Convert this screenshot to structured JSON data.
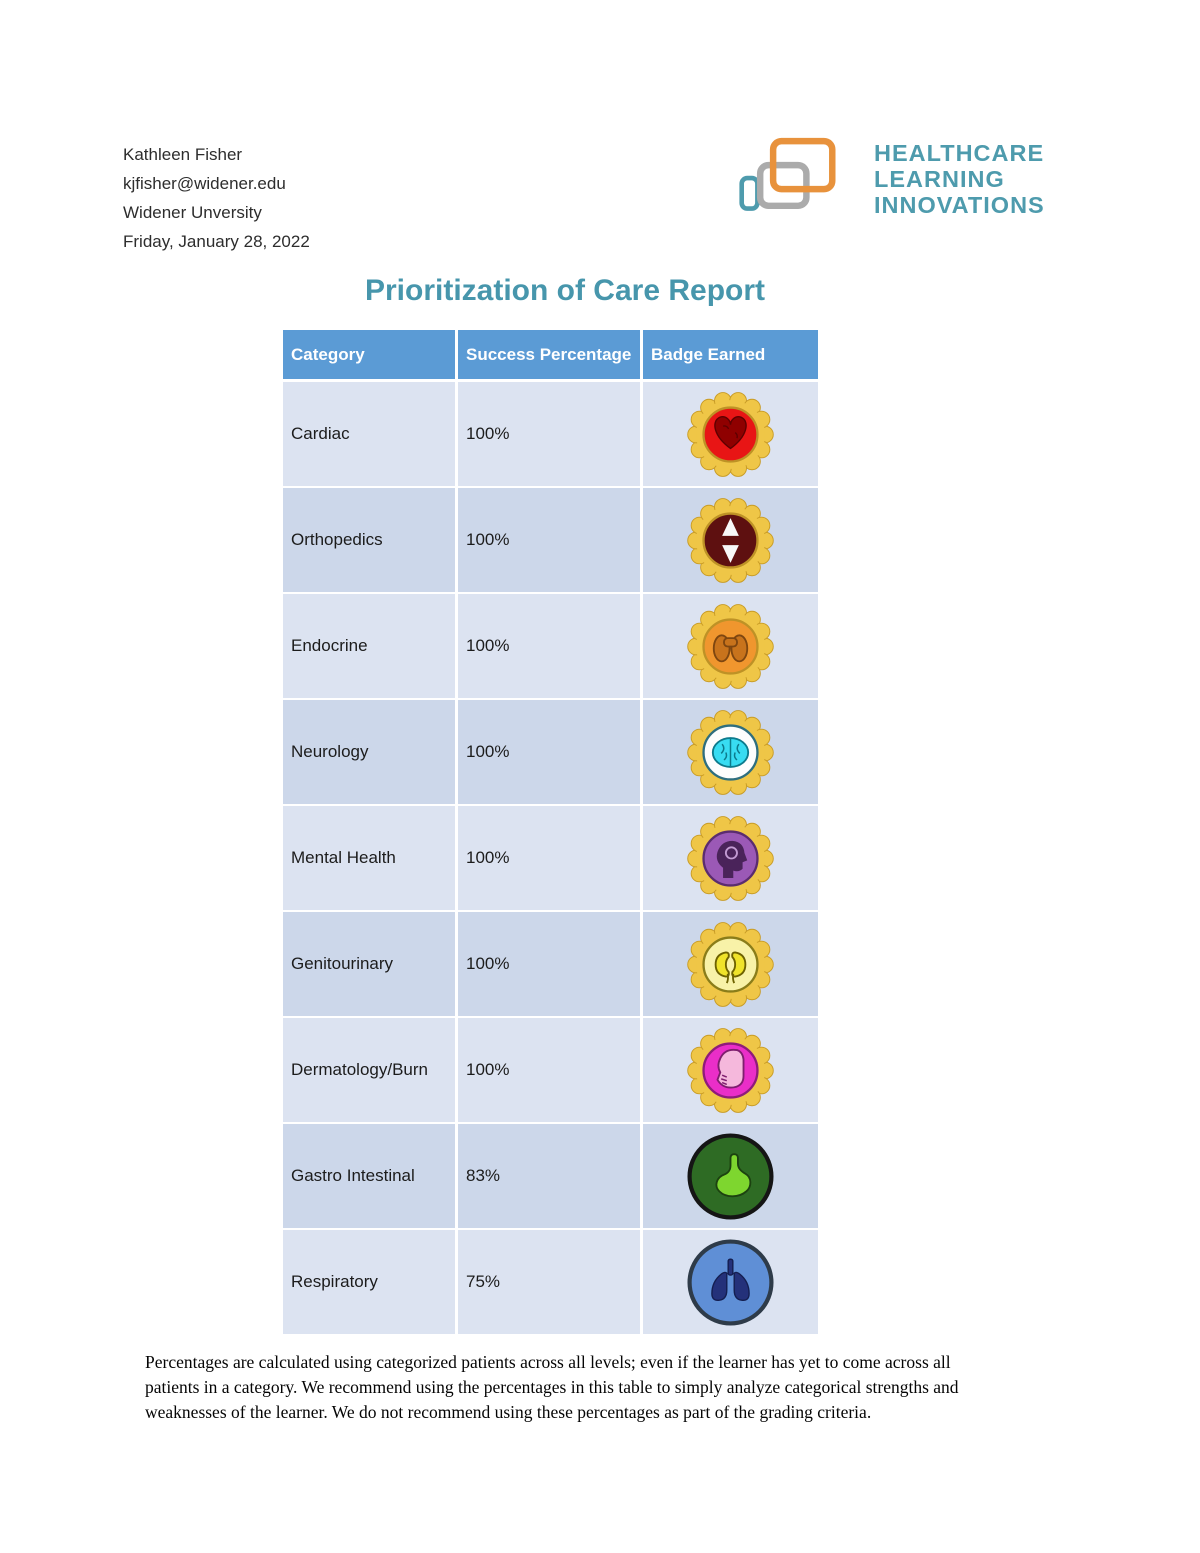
{
  "theme": {
    "teal": "#4E9BAD",
    "title_color": "#4796AC",
    "header_bg": "#5B9BD5",
    "row_odd": "#DCE3F1",
    "row_even": "#CCD7EA",
    "logo_orange": "#E8923C",
    "logo_gray": "#ABABAB",
    "gear_ring": "#EFC647",
    "gear_edge": "#C89B25"
  },
  "user": {
    "name": "Kathleen Fisher",
    "email": "kjfisher@widener.edu",
    "institution": "Widener Unversity",
    "date": "Friday, January 28, 2022"
  },
  "logo": {
    "lines": [
      "HEALTHCARE",
      "LEARNING",
      "INNOVATIONS"
    ]
  },
  "title": "Prioritization of Care Report",
  "table": {
    "headers": [
      "Category",
      "Success Percentage",
      "Badge Earned"
    ],
    "rows": [
      {
        "category": "Cardiac",
        "percentage": "100%",
        "badge": {
          "icon": "heart-icon",
          "style": "gear",
          "bg": "#E81515",
          "bg_edge": "#BE9226",
          "fg": "#8F0000",
          "fg_edge": "#5E0000"
        }
      },
      {
        "category": "Orthopedics",
        "percentage": "100%",
        "badge": {
          "icon": "joint-icon",
          "style": "gear",
          "bg": "#5E1010",
          "bg_edge": "#BE9226",
          "fg": "#F8F8F8",
          "fg_edge": "#D8D8D8"
        }
      },
      {
        "category": "Endocrine",
        "percentage": "100%",
        "badge": {
          "icon": "thyroid-icon",
          "style": "gear",
          "bg": "#F0962E",
          "bg_edge": "#BE9226",
          "fg": "#C8731C",
          "fg_edge": "#7E4610"
        }
      },
      {
        "category": "Neurology",
        "percentage": "100%",
        "badge": {
          "icon": "brain-icon",
          "style": "gear",
          "bg": "#FDFDFD",
          "bg_edge": "#2F6E7E",
          "fg": "#38DCF2",
          "fg_edge": "#0C7A8C"
        }
      },
      {
        "category": "Mental Health",
        "percentage": "100%",
        "badge": {
          "icon": "head-icon",
          "style": "gear",
          "bg": "#9B59B6",
          "bg_edge": "#5B2C6F",
          "fg": "#4A235A",
          "fg_edge": "#3A1A48"
        }
      },
      {
        "category": "Genitourinary",
        "percentage": "100%",
        "badge": {
          "icon": "kidneys-icon",
          "style": "gear",
          "bg": "#F8F2A8",
          "bg_edge": "#8A7D1A",
          "fg": "#F0E32A",
          "fg_edge": "#6E6200"
        }
      },
      {
        "category": "Dermatology/Burn",
        "percentage": "100%",
        "badge": {
          "icon": "face-icon",
          "style": "gear",
          "bg": "#EA2EC8",
          "bg_edge": "#8E1C7A",
          "fg": "#F5B8DC",
          "fg_edge": "#7E1E6E"
        }
      },
      {
        "category": "Gastro Intestinal",
        "percentage": "83%",
        "badge": {
          "icon": "stomach-icon",
          "style": "plain",
          "bg": "#2E6B24",
          "bg_edge": "#151515",
          "fg": "#7ED62F",
          "fg_edge": "#1C4210"
        }
      },
      {
        "category": "Respiratory",
        "percentage": "75%",
        "badge": {
          "icon": "lungs-icon",
          "style": "plain",
          "bg": "#5F8FD6",
          "bg_edge": "#2E3B49",
          "fg": "#24317A",
          "fg_edge": "#141E50"
        }
      }
    ]
  },
  "footer": "Percentages are calculated using categorized patients across all levels; even if the learner has yet to come across all patients in a category. We recommend using the percentages in this table to simply analyze categorical strengths and weaknesses of the learner. We do not recommend using these percentages as part of the grading criteria."
}
